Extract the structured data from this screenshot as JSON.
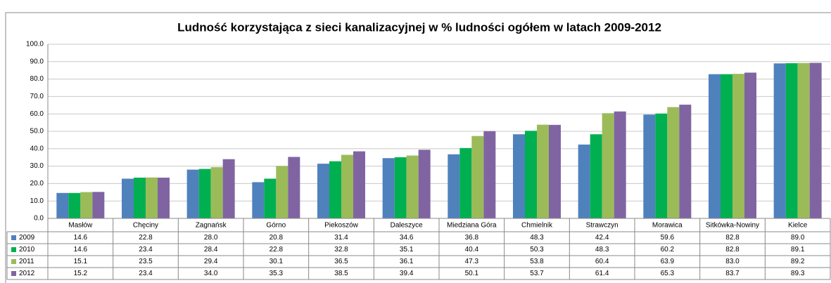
{
  "chart_data": {
    "type": "bar",
    "title": "Ludność korzystająca z sieci kanalizacyjnej w % ludności ogółem w latach 2009-2012",
    "categories": [
      "Masłów",
      "Chęciny",
      "Zagnańsk",
      "Górno",
      "Piekoszów",
      "Daleszyce",
      "Miedziana Góra",
      "Chmielnik",
      "Strawczyn",
      "Morawica",
      "Sitkówka-Nowiny",
      "Kielce"
    ],
    "series": [
      {
        "name": "2009",
        "color": "#4f81bd",
        "values": [
          14.6,
          22.8,
          28.0,
          20.8,
          31.4,
          34.6,
          36.8,
          48.3,
          42.4,
          59.6,
          82.8,
          89.0
        ],
        "value_labels": [
          "14.6",
          "22.8",
          "28.0",
          "20.8",
          "31.4",
          "34.6",
          "36.8",
          "48.3",
          "42.4",
          "59.6",
          "82.8",
          "89.0"
        ]
      },
      {
        "name": "2010",
        "color": "#00b050",
        "values": [
          14.6,
          23.4,
          28.4,
          22.8,
          32.8,
          35.1,
          40.4,
          50.3,
          48.3,
          60.2,
          82.8,
          89.1
        ],
        "value_labels": [
          "14.6",
          "23.4",
          "28.4",
          "22.8",
          "32.8",
          "35.1",
          "40.4",
          "50.3",
          "48.3",
          "60.2",
          "82.8",
          "89.1"
        ]
      },
      {
        "name": "2011",
        "color": "#9bbb59",
        "values": [
          15.1,
          23.5,
          29.4,
          30.1,
          36.5,
          36.1,
          47.3,
          53.8,
          60.4,
          63.9,
          83.0,
          89.2
        ],
        "value_labels": [
          "15.1",
          "23.5",
          "29.4",
          "30.1",
          "36.5",
          "36.1",
          "47.3",
          "53.8",
          "60.4",
          "63.9",
          "83.0",
          "89.2"
        ]
      },
      {
        "name": "2012",
        "color": "#8064a2",
        "values": [
          15.2,
          23.4,
          34.0,
          35.3,
          38.5,
          39.4,
          50.1,
          53.7,
          61.4,
          65.3,
          83.7,
          89.3
        ],
        "value_labels": [
          "15.2",
          "23.4",
          "34.0",
          "35.3",
          "38.5",
          "39.4",
          "50.1",
          "53.7",
          "61.4",
          "65.3",
          "83.7",
          "89.3"
        ]
      }
    ],
    "ylim": [
      0,
      100
    ],
    "yticks": [
      {
        "value": 0,
        "label": "0.0"
      },
      {
        "value": 10,
        "label": "10.0"
      },
      {
        "value": 20,
        "label": "20.0"
      },
      {
        "value": 30,
        "label": "30.0"
      },
      {
        "value": 40,
        "label": "40.0"
      },
      {
        "value": 50,
        "label": "50.0"
      },
      {
        "value": 60,
        "label": "60.0"
      },
      {
        "value": 70,
        "label": "70.0"
      },
      {
        "value": 80,
        "label": "80.0"
      },
      {
        "value": 90,
        "label": "90.0"
      },
      {
        "value": 100,
        "label": "100.0"
      }
    ],
    "grid": true
  }
}
